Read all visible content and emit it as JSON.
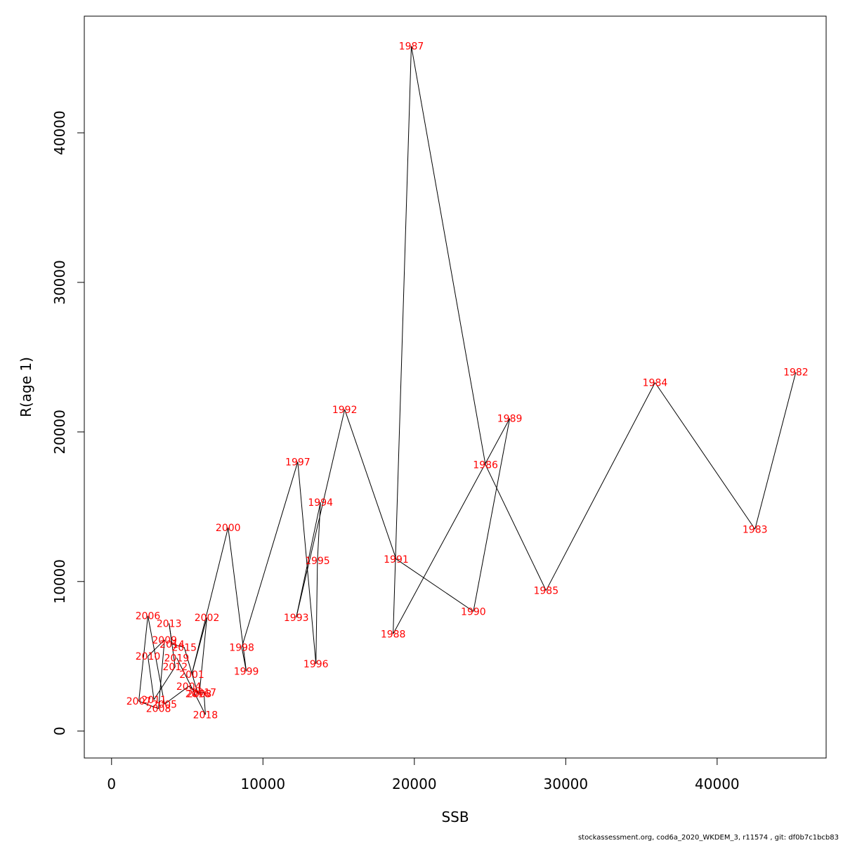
{
  "chart_data": {
    "type": "line",
    "title": "",
    "xlabel": "SSB",
    "ylabel": "R(age 1)",
    "xlim": [
      -1800,
      47200
    ],
    "ylim": [
      -1800,
      47800
    ],
    "x_ticks": [
      0,
      10000,
      20000,
      30000,
      40000
    ],
    "y_ticks": [
      0,
      10000,
      20000,
      30000,
      40000
    ],
    "grid": false,
    "line_color": "#000000",
    "label_color": "#ff0000",
    "points": [
      {
        "year": "1982",
        "ssb": 45200,
        "r": 24000
      },
      {
        "year": "1983",
        "ssb": 42500,
        "r": 13500
      },
      {
        "year": "1984",
        "ssb": 35900,
        "r": 23300
      },
      {
        "year": "1985",
        "ssb": 28700,
        "r": 9400
      },
      {
        "year": "1986",
        "ssb": 24700,
        "r": 17800
      },
      {
        "year": "1987",
        "ssb": 19800,
        "r": 45800
      },
      {
        "year": "1988",
        "ssb": 18600,
        "r": 6500
      },
      {
        "year": "1989",
        "ssb": 26300,
        "r": 20900
      },
      {
        "year": "1990",
        "ssb": 23900,
        "r": 8000
      },
      {
        "year": "1991",
        "ssb": 18800,
        "r": 11500
      },
      {
        "year": "1992",
        "ssb": 15400,
        "r": 21500
      },
      {
        "year": "1993",
        "ssb": 12200,
        "r": 7600
      },
      {
        "year": "1994",
        "ssb": 13800,
        "r": 15300
      },
      {
        "year": "1995",
        "ssb": 13600,
        "r": 11400
      },
      {
        "year": "1996",
        "ssb": 13500,
        "r": 4500
      },
      {
        "year": "1997",
        "ssb": 12300,
        "r": 18000
      },
      {
        "year": "1998",
        "ssb": 8600,
        "r": 5600
      },
      {
        "year": "1999",
        "ssb": 8900,
        "r": 4000
      },
      {
        "year": "2000",
        "ssb": 7700,
        "r": 13600
      },
      {
        "year": "2001",
        "ssb": 5300,
        "r": 3800
      },
      {
        "year": "2002",
        "ssb": 6300,
        "r": 7600
      },
      {
        "year": "2003",
        "ssb": 5800,
        "r": 2500
      },
      {
        "year": "2004",
        "ssb": 5100,
        "r": 3000
      },
      {
        "year": "2005",
        "ssb": 3500,
        "r": 1800
      },
      {
        "year": "2006",
        "ssb": 2400,
        "r": 7700
      },
      {
        "year": "2007",
        "ssb": 1800,
        "r": 2000
      },
      {
        "year": "2008",
        "ssb": 3100,
        "r": 1500
      },
      {
        "year": "2009",
        "ssb": 3500,
        "r": 6100
      },
      {
        "year": "2010",
        "ssb": 2400,
        "r": 5000
      },
      {
        "year": "2011",
        "ssb": 2800,
        "r": 2100
      },
      {
        "year": "2012",
        "ssb": 4200,
        "r": 4300
      },
      {
        "year": "2013",
        "ssb": 3800,
        "r": 7200
      },
      {
        "year": "2014",
        "ssb": 4000,
        "r": 5800
      },
      {
        "year": "2015",
        "ssb": 4800,
        "r": 5600
      },
      {
        "year": "2016",
        "ssb": 5700,
        "r": 2500
      },
      {
        "year": "2017",
        "ssb": 6100,
        "r": 2600
      },
      {
        "year": "2018",
        "ssb": 6200,
        "r": 1100
      },
      {
        "year": "2019",
        "ssb": 4300,
        "r": 4900
      }
    ]
  },
  "footer": "stockassessment.org, cod6a_2020_WKDEM_3, r11574 , git: df0b7c1bcb83"
}
